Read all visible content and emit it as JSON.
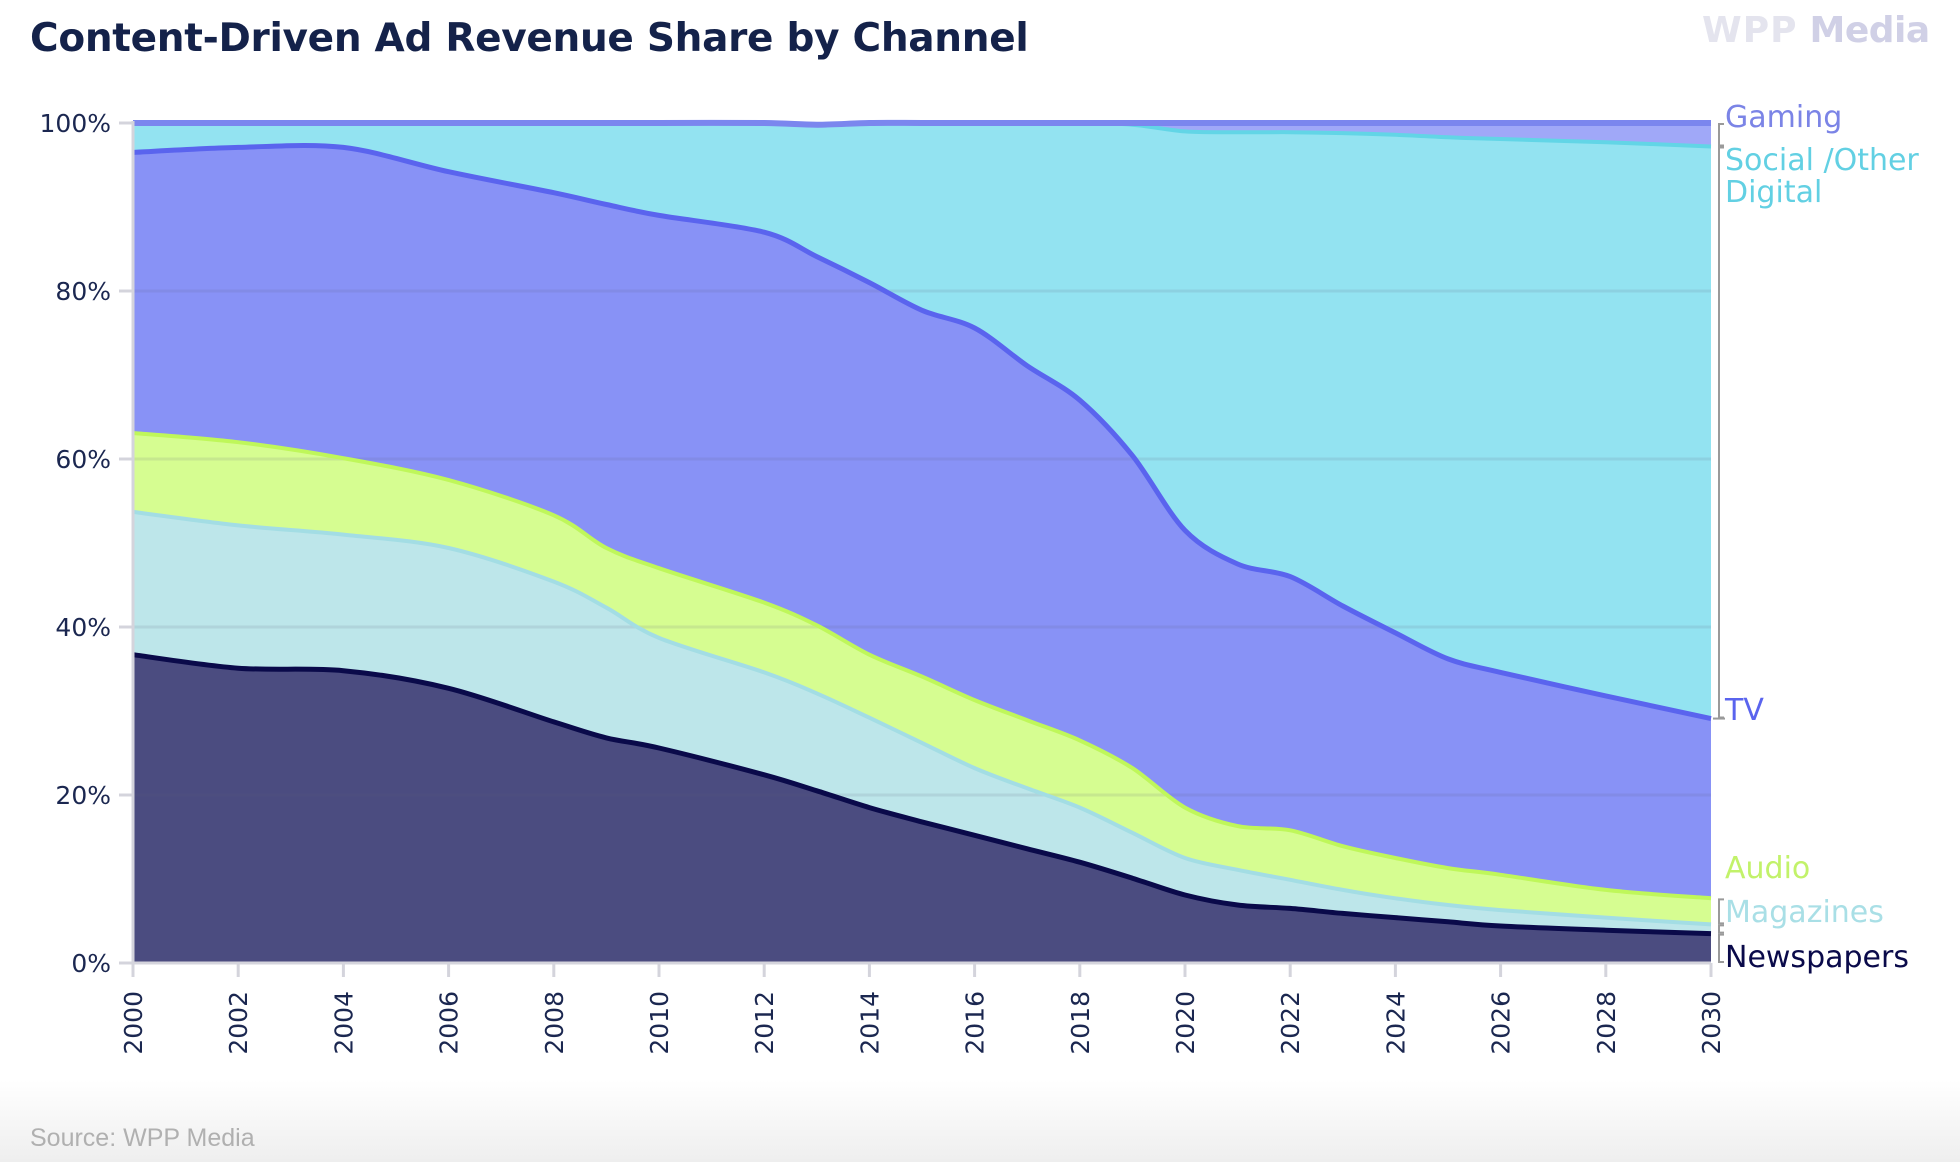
{
  "header": {
    "title": "Content-Driven Ad Revenue Share by Channel",
    "logo_prefix": "WPP",
    "logo_suffix": "Media"
  },
  "footer": {
    "source": "Source: WPP Media"
  },
  "chart_data": {
    "type": "area",
    "stacked": true,
    "title": "Content-Driven Ad Revenue Share by Channel",
    "xlabel": "",
    "ylabel": "",
    "ylim": [
      0,
      100
    ],
    "xlim": [
      2000,
      2030
    ],
    "y_ticks": [
      "0%",
      "20%",
      "40%",
      "60%",
      "80%",
      "100%"
    ],
    "y_tick_values": [
      0,
      20,
      40,
      60,
      80,
      100
    ],
    "x_ticks": [
      "2000",
      "2002",
      "2004",
      "2006",
      "2008",
      "2010",
      "2012",
      "2014",
      "2016",
      "2018",
      "2020",
      "2022",
      "2024",
      "2026",
      "2028",
      "2030"
    ],
    "grid": true,
    "legend": "direct labels at right",
    "x": [
      2000,
      2002,
      2004,
      2006,
      2008,
      2009,
      2010,
      2012,
      2013,
      2014,
      2015,
      2016,
      2017,
      2018,
      2019,
      2020,
      2021,
      2022,
      2023,
      2024,
      2025,
      2026,
      2028,
      2030
    ],
    "series": [
      {
        "name": "Newspapers",
        "label": "Newspapers",
        "color": "#4b4c80",
        "line": "#0a0a4a",
        "text_color": "#0a0a4a",
        "values": [
          36.7,
          35.1,
          34.8,
          32.7,
          28.7,
          26.8,
          25.6,
          22.4,
          20.5,
          18.5,
          16.8,
          15.2,
          13.6,
          12.0,
          10.1,
          8.1,
          6.9,
          6.5,
          5.9,
          5.4,
          4.9,
          4.4,
          3.9,
          3.5
        ]
      },
      {
        "name": "Magazines",
        "label": "Magazines",
        "color": "#bde6ea",
        "line": "#a3dde4",
        "text_color": "#a9dfe6",
        "values": [
          17.0,
          17.0,
          16.2,
          16.7,
          16.7,
          15.5,
          13.1,
          12.2,
          11.6,
          10.7,
          9.4,
          8.0,
          7.2,
          6.5,
          5.4,
          4.4,
          4.2,
          3.4,
          2.8,
          2.3,
          2.0,
          1.9,
          1.5,
          1.1
        ]
      },
      {
        "name": "Audio",
        "label": "Audio",
        "color": "#d6fd91",
        "line": "#bff75a",
        "text_color": "#c2f26a",
        "values": [
          9.4,
          9.9,
          9.1,
          8.1,
          7.9,
          7.1,
          8.3,
          8.3,
          8.1,
          7.5,
          7.9,
          8.1,
          8.1,
          8.0,
          7.7,
          6.0,
          5.2,
          5.9,
          5.2,
          4.8,
          4.4,
          4.2,
          3.3,
          3.1
        ]
      },
      {
        "name": "TV",
        "label": "TV",
        "color": "#8892f6",
        "line": "#5a64ee",
        "text_color": "#5a64ee",
        "values": [
          33.4,
          35.1,
          37.0,
          36.7,
          38.4,
          40.9,
          42.0,
          44.1,
          43.9,
          44.3,
          43.6,
          44.3,
          42.2,
          40.5,
          37.2,
          33.0,
          31.2,
          30.2,
          28.6,
          26.8,
          24.9,
          24.1,
          23.1,
          21.4
        ]
      },
      {
        "name": "Social /Other Digital",
        "label": "Social /Other\nDigital",
        "color": "#93e3f1",
        "line": "#62d5e6",
        "text_color": "#62d0e3",
        "values": [
          3.5,
          2.9,
          2.9,
          5.8,
          8.3,
          9.7,
          11.0,
          13.0,
          15.7,
          19.0,
          22.3,
          24.4,
          28.9,
          33.0,
          39.4,
          47.5,
          51.4,
          52.9,
          56.3,
          59.3,
          62.1,
          63.5,
          65.9,
          68.1
        ]
      },
      {
        "name": "Gaming",
        "label": "Gaming",
        "color": "#a0a8f8",
        "line": "#7b86ee",
        "text_color": "#7b84e6",
        "values": [
          0.0,
          0.0,
          0.0,
          0.0,
          0.0,
          0.0,
          0.0,
          0.0,
          0.0,
          0.0,
          0.0,
          0.0,
          0.0,
          0.0,
          0.2,
          1.0,
          1.1,
          1.1,
          1.2,
          1.4,
          1.7,
          1.9,
          2.3,
          2.8
        ]
      }
    ]
  }
}
